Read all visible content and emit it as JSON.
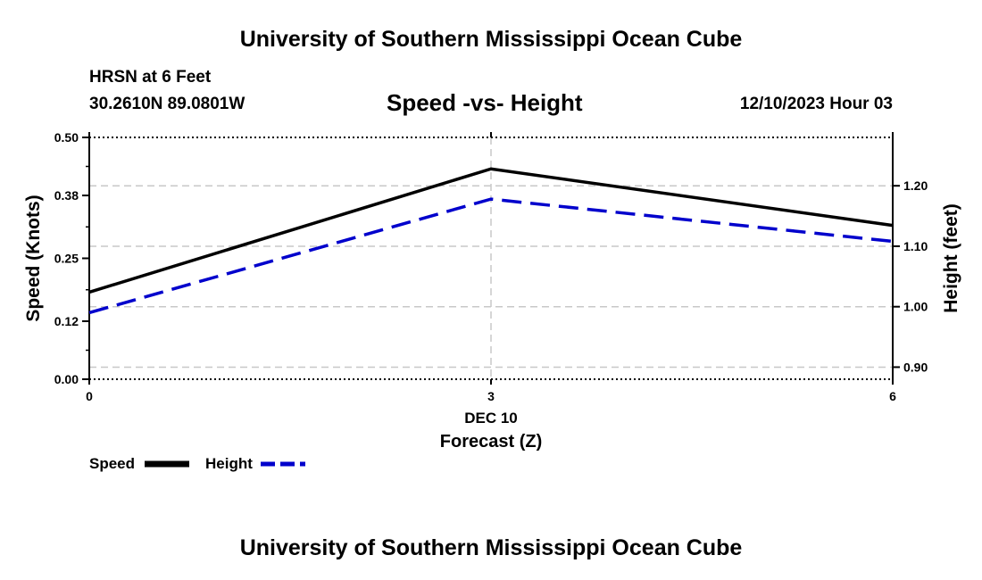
{
  "header": {
    "title": "University of Southern Mississippi Ocean Cube",
    "station": "HRSN at 6 Feet",
    "coords": "30.2610N  89.0801W",
    "datetime": "12/10/2023 Hour 03"
  },
  "footer": {
    "title": "University of Southern Mississippi Ocean Cube"
  },
  "colors": {
    "speed": "#000000",
    "height": "#0000cc",
    "grid": "#c8c8c8"
  },
  "chart_data": {
    "type": "line",
    "title": "Speed -vs- Height",
    "xlabel": "Forecast (Z)",
    "x_sublabel": "DEC 10",
    "ylabel": "Speed (Knots)",
    "y2label": "Height (feet)",
    "x": [
      0,
      3,
      6
    ],
    "x_ticks": [
      "0",
      "3",
      "6"
    ],
    "xlim": [
      0,
      6
    ],
    "ylim": [
      0,
      0.5
    ],
    "y_ticks": [
      "0.00",
      "0.12",
      "0.25",
      "0.38",
      "0.50"
    ],
    "y2lim": [
      0.88,
      1.28
    ],
    "y2_ticks": [
      "0.90",
      "1.00",
      "1.10",
      "1.20"
    ],
    "grid": true,
    "legend_position": "bottom-left",
    "series": [
      {
        "name": "Speed",
        "axis": "left",
        "style": "solid",
        "values": [
          0.18,
          0.435,
          0.318
        ]
      },
      {
        "name": "Height",
        "axis": "right",
        "style": "dashed",
        "values": [
          0.99,
          1.178,
          1.108
        ]
      }
    ]
  }
}
